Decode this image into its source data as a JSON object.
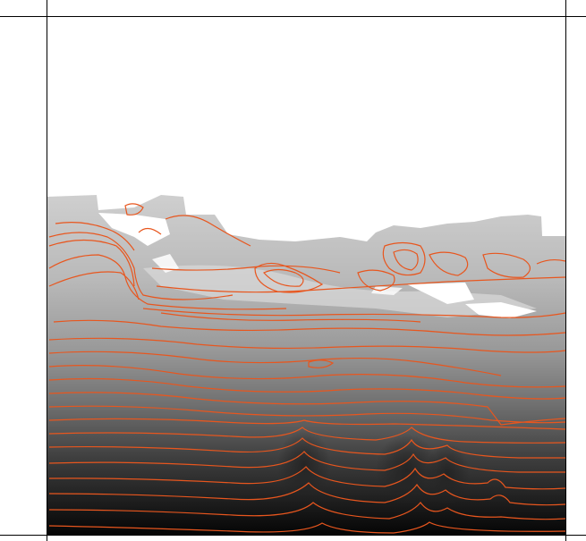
{
  "image": {
    "kind": "grayscale field with contour lines",
    "colors": {
      "background": "#ffffff",
      "frame": "#000000",
      "contour": "#e8561e",
      "field_dark": "#0a0a0a",
      "field_light": "#c8c8c8",
      "empty_region": "#ffffff"
    }
  }
}
